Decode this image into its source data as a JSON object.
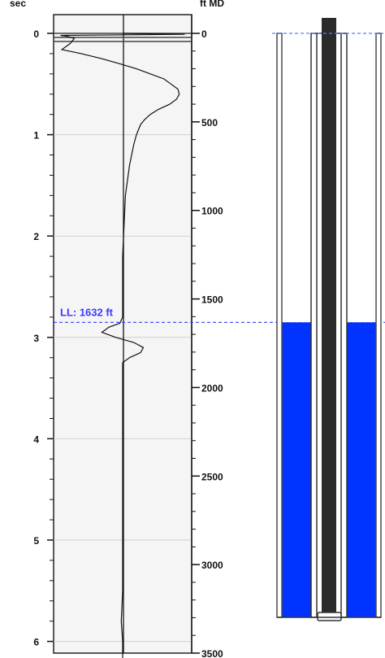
{
  "chart_data": {
    "type": "line",
    "title": "",
    "left_axis": {
      "unit_label": "sec",
      "range": [
        0,
        6.2
      ],
      "major_ticks": [
        0,
        1,
        2,
        3,
        4,
        5,
        6
      ],
      "tick_labels": [
        "0",
        "1",
        "2",
        "3",
        "4",
        "5",
        "6"
      ],
      "minor_tick_step": 0.2,
      "grid": true
    },
    "right_axis": {
      "unit_label": "ft MD",
      "range": [
        0,
        3500
      ],
      "major_ticks": [
        0,
        500,
        1000,
        1500,
        2000,
        2500,
        3000,
        3500
      ],
      "tick_labels": [
        "0",
        "500",
        "1000",
        "1500",
        "2000",
        "2500",
        "3000",
        "3500"
      ],
      "minor_tick_step": 100
    },
    "liquid_level": {
      "label": "LL: 1632 ft",
      "depth_ft": 1632,
      "time_sec": 2.87,
      "color": "#3a3aff"
    },
    "series": [
      {
        "baseline": 0.5,
        "points": [
          [
            0.0,
            0.5
          ],
          [
            0.01,
            0.95
          ],
          [
            0.02,
            0.05
          ],
          [
            0.03,
            0.1
          ],
          [
            0.05,
            0.15
          ],
          [
            0.1,
            0.12
          ],
          [
            0.16,
            0.06
          ],
          [
            0.2,
            0.2
          ],
          [
            0.25,
            0.35
          ],
          [
            0.3,
            0.48
          ],
          [
            0.35,
            0.6
          ],
          [
            0.4,
            0.7
          ],
          [
            0.45,
            0.8
          ],
          [
            0.5,
            0.85
          ],
          [
            0.55,
            0.9
          ],
          [
            0.6,
            0.91
          ],
          [
            0.65,
            0.89
          ],
          [
            0.7,
            0.84
          ],
          [
            0.75,
            0.76
          ],
          [
            0.8,
            0.7
          ],
          [
            0.85,
            0.66
          ],
          [
            0.9,
            0.63
          ],
          [
            1.0,
            0.6
          ],
          [
            1.1,
            0.58
          ],
          [
            1.3,
            0.55
          ],
          [
            1.6,
            0.52
          ],
          [
            1.9,
            0.51
          ],
          [
            2.2,
            0.5
          ],
          [
            2.5,
            0.5
          ],
          [
            2.7,
            0.5
          ],
          [
            2.8,
            0.5
          ],
          [
            2.86,
            0.48
          ],
          [
            2.9,
            0.4
          ],
          [
            2.95,
            0.35
          ],
          [
            3.0,
            0.45
          ],
          [
            3.05,
            0.58
          ],
          [
            3.1,
            0.65
          ],
          [
            3.15,
            0.63
          ],
          [
            3.2,
            0.55
          ],
          [
            3.25,
            0.5
          ],
          [
            3.5,
            0.5
          ],
          [
            4.0,
            0.5
          ],
          [
            4.5,
            0.5
          ],
          [
            5.0,
            0.5
          ],
          [
            5.5,
            0.5
          ],
          [
            5.8,
            0.49
          ],
          [
            6.0,
            0.5
          ],
          [
            6.2,
            0.5
          ]
        ]
      }
    ]
  },
  "wellbore": {
    "casing_color": "#4a4a4a",
    "tubing_color": "#2b2b2b",
    "annulus_gas_color": "#ffffff",
    "annulus_liquid_color": "#0033ff",
    "level_line_color": "#5a7aff"
  }
}
